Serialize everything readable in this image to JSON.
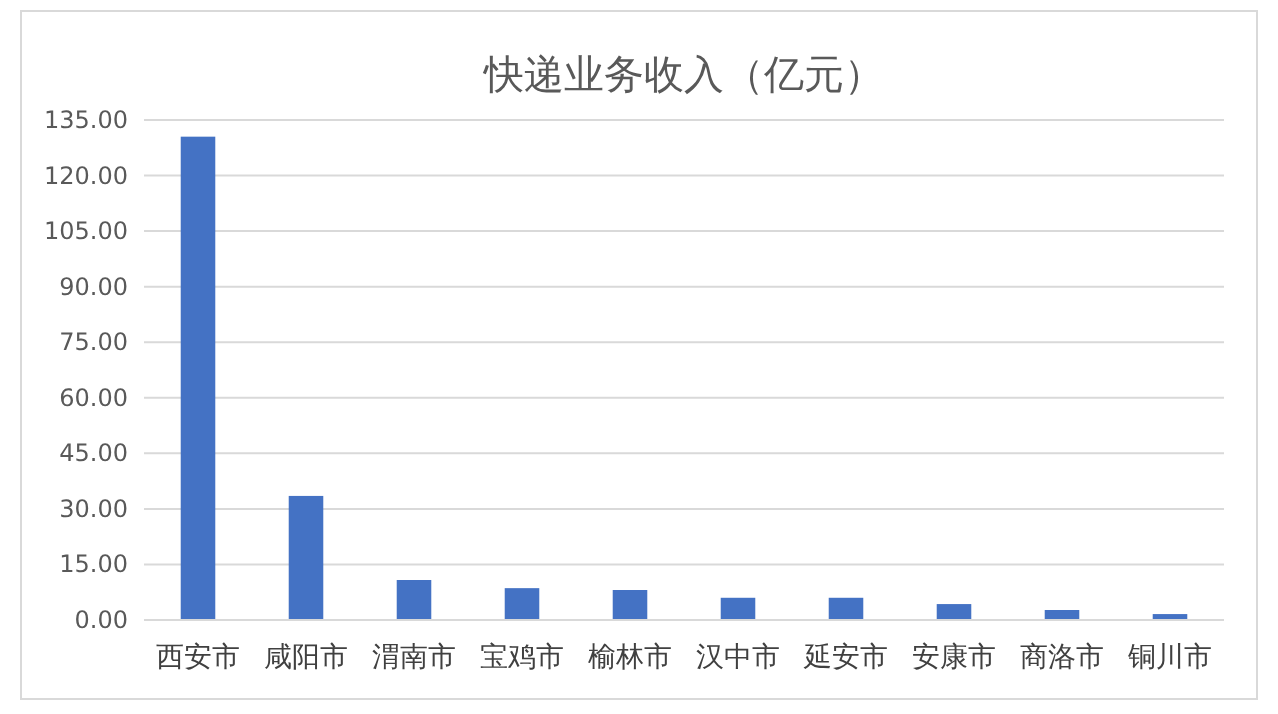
{
  "chart_data": {
    "type": "bar",
    "title": "快递业务收入（亿元）",
    "categories": [
      "西安市",
      "咸阳市",
      "渭南市",
      "宝鸡市",
      "榆林市",
      "汉中市",
      "延安市",
      "安康市",
      "商洛市",
      "铜川市"
    ],
    "values": [
      130.5,
      33.5,
      10.8,
      8.6,
      8.1,
      6.0,
      6.0,
      4.3,
      2.7,
      1.6
    ],
    "color": "#4472c4",
    "ylim": [
      0,
      135
    ],
    "yticks": [
      {
        "value": 0,
        "label": "0.00"
      },
      {
        "value": 15,
        "label": "15.00"
      },
      {
        "value": 30,
        "label": "30.00"
      },
      {
        "value": 45,
        "label": "45.00"
      },
      {
        "value": 60,
        "label": "60.00"
      },
      {
        "value": 75,
        "label": "75.00"
      },
      {
        "value": 90,
        "label": "90.00"
      },
      {
        "value": 105,
        "label": "105.00"
      },
      {
        "value": 120,
        "label": "120.00"
      },
      {
        "value": 135,
        "label": "135.00"
      }
    ],
    "grid": "y"
  }
}
